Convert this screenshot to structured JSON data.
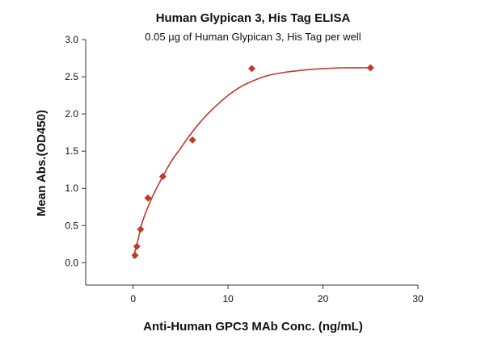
{
  "chart_data": {
    "type": "scatter",
    "title": "Human Glypican 3, His Tag ELISA",
    "subtitle": "0.05 µg of Human Glypican 3, His Tag per well",
    "xlabel": "Anti-Human GPC3 MAb Conc. (ng/mL)",
    "ylabel": "Mean Abs.(OD450)",
    "xlim": [
      -5,
      30
    ],
    "ylim": [
      -0.3,
      3.0
    ],
    "xticks": [
      0,
      10,
      20,
      30
    ],
    "yticks": [
      0.0,
      0.5,
      1.0,
      1.5,
      2.0,
      2.5,
      3.0
    ],
    "xtick_labels": [
      "0",
      "10",
      "20",
      "30"
    ],
    "ytick_labels": [
      "0.0",
      "0.5",
      "1.0",
      "1.5",
      "2.0",
      "2.5",
      "3.0"
    ],
    "grid": false,
    "legend": "none",
    "color": "#c0392b",
    "marker": "diamond",
    "series": [
      {
        "x": [
          0.195,
          0.391,
          0.781,
          1.563,
          3.125,
          6.25,
          12.5,
          25
        ],
        "y": [
          0.1,
          0.22,
          0.45,
          0.87,
          1.16,
          1.65,
          2.61,
          2.62
        ]
      }
    ],
    "fit_curve": {
      "x": [
        0.0,
        0.5,
        1.0,
        2.0,
        3.0,
        4.0,
        5.0,
        6.0,
        7.0,
        8.0,
        9.0,
        10.0,
        11.0,
        12.0,
        14.0,
        16.0,
        18.0,
        20.0,
        22.0,
        25.0
      ],
      "y": [
        0.06,
        0.3,
        0.56,
        0.88,
        1.13,
        1.36,
        1.54,
        1.72,
        1.88,
        2.02,
        2.14,
        2.25,
        2.34,
        2.41,
        2.51,
        2.56,
        2.59,
        2.61,
        2.62,
        2.62
      ]
    }
  }
}
